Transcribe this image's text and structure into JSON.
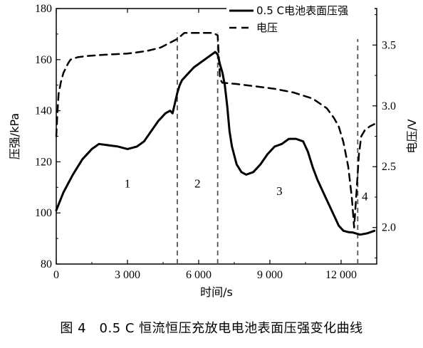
{
  "caption": "图 4　0.5 C 恒流恒压充放电电池表面压强变化曲线",
  "chart_data": {
    "type": "line",
    "xlabel": "时间/s",
    "ylabel_left": "压强/kPa",
    "ylabel_right": "电压/V",
    "xlim": [
      0,
      13500
    ],
    "ylim_left": [
      80,
      180
    ],
    "ylim_right": [
      1.7,
      3.8
    ],
    "x_ticks": [
      0,
      3000,
      6000,
      9000,
      12000
    ],
    "x_tick_labels": [
      "0",
      "3 000",
      "6 000",
      "9 000",
      "12 000"
    ],
    "y_left_ticks": [
      80,
      100,
      120,
      140,
      160,
      180
    ],
    "y_left_tick_labels": [
      "80",
      "100",
      "120",
      "140",
      "160",
      "180"
    ],
    "y_right_ticks": [
      2.0,
      2.5,
      3.0,
      3.5
    ],
    "y_right_tick_labels": [
      "2.0",
      "2.5",
      "3.0",
      "3.5"
    ],
    "grid": false,
    "legend_position": "top-right",
    "series": [
      {
        "name": "0.5 C电池表面压强",
        "axis": "left",
        "style": "solid",
        "color": "#000000",
        "x": [
          0,
          300,
          700,
          1100,
          1500,
          1800,
          2200,
          2600,
          3000,
          3400,
          3700,
          4000,
          4300,
          4600,
          4800,
          4900,
          5000,
          5100,
          5200,
          5300,
          5500,
          5800,
          6100,
          6400,
          6700,
          6800,
          6900,
          7000,
          7100,
          7200,
          7300,
          7400,
          7600,
          7800,
          8000,
          8300,
          8600,
          8900,
          9200,
          9500,
          9800,
          10100,
          10400,
          10600,
          10800,
          11000,
          11300,
          11600,
          11900,
          12100,
          12300,
          12500,
          12800,
          13100,
          13400
        ],
        "y": [
          101,
          108,
          115,
          121,
          125,
          127,
          126.5,
          126,
          125,
          126,
          128,
          132,
          136,
          139,
          140,
          139,
          143,
          147,
          150,
          152,
          154,
          157,
          159,
          161,
          163,
          162,
          158,
          155,
          150,
          142,
          132,
          126,
          119,
          116,
          115,
          116,
          119,
          123,
          126,
          127,
          129,
          129,
          128,
          124,
          118,
          113,
          107,
          101,
          95,
          93,
          92.5,
          92.3,
          91.5,
          92,
          93
        ]
      },
      {
        "name": "电压",
        "axis": "right",
        "style": "dashed",
        "color": "#000000",
        "x": [
          0,
          50,
          100,
          200,
          300,
          400,
          500,
          600,
          900,
          1300,
          2000,
          3000,
          3800,
          4400,
          4800,
          5100,
          5400,
          6000,
          6600,
          6800,
          6900,
          7000,
          7600,
          8400,
          9200,
          10000,
          10800,
          11400,
          11700,
          11900,
          12100,
          12300,
          12450,
          12550,
          12650,
          12750,
          12850,
          13000,
          13200,
          13400
        ],
        "y": [
          2.75,
          2.95,
          3.1,
          3.2,
          3.27,
          3.31,
          3.35,
          3.38,
          3.4,
          3.41,
          3.42,
          3.43,
          3.45,
          3.48,
          3.52,
          3.55,
          3.6,
          3.6,
          3.6,
          3.58,
          3.22,
          3.19,
          3.18,
          3.16,
          3.14,
          3.11,
          3.06,
          2.98,
          2.9,
          2.83,
          2.7,
          2.5,
          2.25,
          2.0,
          2.3,
          2.6,
          2.75,
          2.8,
          2.83,
          2.85
        ]
      }
    ],
    "dividers_x": [
      5100,
      6800,
      12700
    ],
    "region_labels": [
      {
        "text": "1",
        "x": 3000,
        "y": 110
      },
      {
        "text": "2",
        "x": 5950,
        "y": 110
      },
      {
        "text": "3",
        "x": 9400,
        "y": 107
      },
      {
        "text": "4",
        "x": 13000,
        "y": 105
      }
    ]
  }
}
